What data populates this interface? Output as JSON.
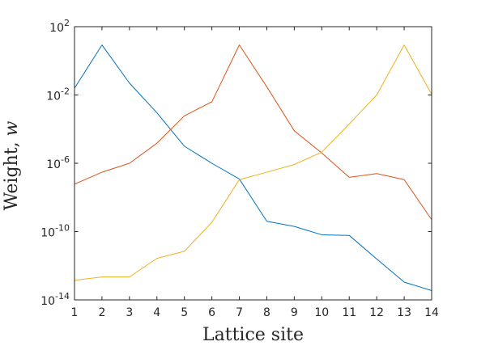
{
  "chart_data": {
    "type": "line",
    "title": "",
    "xlabel": "Lattice site",
    "ylabel_main": "Weight, ",
    "ylabel_var": "w",
    "xscale": "linear",
    "yscale": "log",
    "xlim": [
      1,
      14
    ],
    "ylim": [
      1e-14,
      100
    ],
    "grid": false,
    "legend": "none",
    "box": true,
    "x": [
      1,
      2,
      3,
      4,
      5,
      6,
      7,
      8,
      9,
      10,
      11,
      12,
      13,
      14
    ],
    "x_ticks": [
      "1",
      "2",
      "3",
      "4",
      "5",
      "6",
      "7",
      "8",
      "9",
      "10",
      "11",
      "12",
      "13",
      "14"
    ],
    "y_ticks": [
      {
        "value": 100,
        "base": "10",
        "exp": "2"
      },
      {
        "value": 0.01,
        "base": "10",
        "exp": "-2"
      },
      {
        "value": 1e-06,
        "base": "10",
        "exp": "-6"
      },
      {
        "value": 1e-10,
        "base": "10",
        "exp": "-10"
      },
      {
        "value": 1e-14,
        "base": "10",
        "exp": "-14"
      }
    ],
    "series": [
      {
        "color": "#0072BD",
        "values": [
          0.025,
          8.5,
          0.05,
          0.0009,
          1e-05,
          1e-06,
          1.2e-07,
          4e-10,
          2e-10,
          6.5e-11,
          6e-11,
          2.5e-12,
          1.1e-13,
          3.5e-14
        ]
      },
      {
        "color": "#D95319",
        "values": [
          6e-08,
          3e-07,
          1e-06,
          1.5e-05,
          0.0006,
          0.004,
          8.5,
          0.03,
          8e-05,
          4e-06,
          1.5e-07,
          2.5e-07,
          1.1e-07,
          5e-10
        ]
      },
      {
        "color": "#EDB120",
        "values": [
          1.4e-13,
          2.2e-13,
          2.2e-13,
          2.7e-12,
          7e-12,
          3.5e-10,
          1.1e-07,
          3e-07,
          8.5e-07,
          4.5e-06,
          0.0002,
          0.01,
          8.5,
          0.011
        ]
      }
    ]
  }
}
